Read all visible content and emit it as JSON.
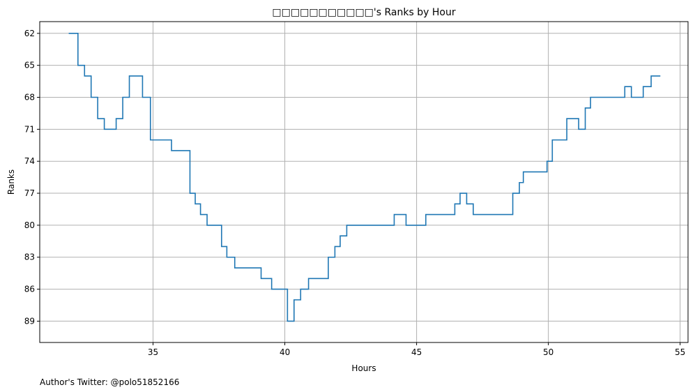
{
  "chart_data": {
    "type": "line",
    "step": "post",
    "title": "□□□□□□□□□□□'s Ranks by Hour",
    "xlabel": "Hours",
    "ylabel": "Ranks",
    "xlim": [
      30.7,
      55.3
    ],
    "ylim": [
      91.0,
      60.9
    ],
    "y_inverted": true,
    "grid": true,
    "x_ticks": [
      35,
      40,
      45,
      50,
      55
    ],
    "x_tick_labels": [
      "35",
      "40",
      "45",
      "50",
      "55"
    ],
    "y_ticks": [
      62,
      65,
      68,
      71,
      74,
      77,
      80,
      83,
      86,
      89
    ],
    "y_tick_labels": [
      "62",
      "65",
      "68",
      "71",
      74,
      "77",
      "80",
      "83",
      "86",
      "89"
    ],
    "line_color": "#1f77b4",
    "series": [
      {
        "x": [
          31.8,
          32.15,
          32.4,
          32.65,
          32.9,
          33.15,
          33.6,
          33.85,
          34.1,
          34.6,
          34.9,
          35.7,
          36.4,
          36.6,
          36.8,
          37.05,
          37.6,
          37.8,
          38.1,
          39.1,
          39.5,
          40.1,
          40.35,
          40.6,
          40.9,
          41.65,
          41.9,
          42.1,
          42.35,
          44.15,
          44.6,
          45.35,
          46.45,
          46.65,
          46.9,
          47.15,
          48.65,
          48.9,
          49.05,
          49.95,
          50.15,
          50.7,
          51.15,
          51.4,
          51.6,
          52.9,
          53.15,
          53.6,
          53.9,
          54.25
        ],
        "y": [
          62,
          65,
          66,
          68,
          70,
          71,
          70,
          68,
          66,
          68,
          72,
          73,
          77,
          78,
          79,
          80,
          82,
          83,
          84,
          85,
          86,
          89,
          87,
          86,
          85,
          83,
          82,
          81,
          80,
          79,
          80,
          79,
          78,
          77,
          78,
          79,
          77,
          76,
          75,
          74,
          72,
          70,
          71,
          69,
          68,
          67,
          68,
          67,
          66,
          66
        ]
      }
    ]
  },
  "footer": {
    "author_note": "Author's Twitter: @polo51852166"
  }
}
